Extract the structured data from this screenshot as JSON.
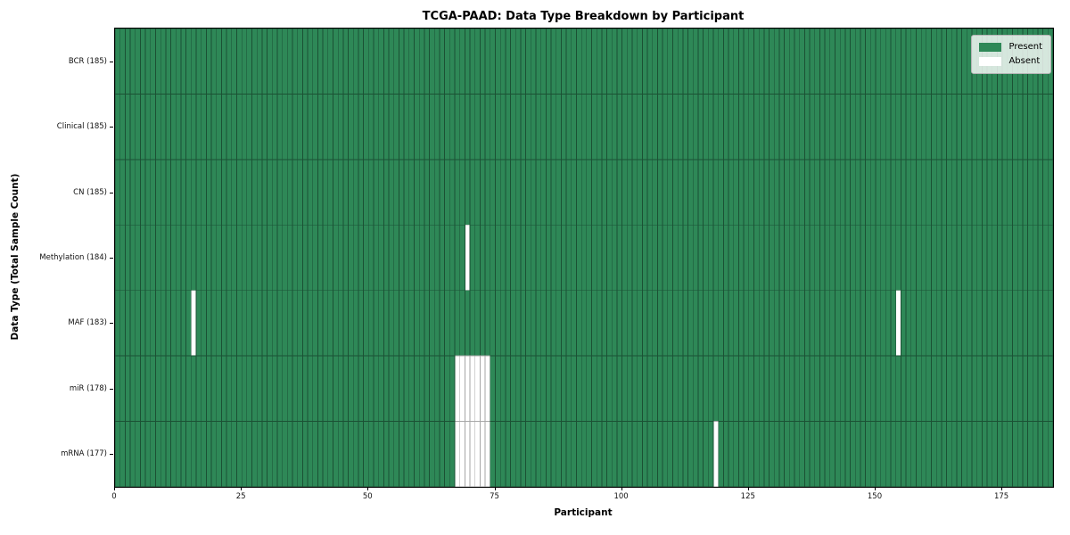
{
  "chart_data": {
    "type": "heatmap",
    "title": "TCGA-PAAD: Data Type Breakdown by Participant",
    "xlabel": "Participant",
    "ylabel": "Data Type (Total Sample Count)",
    "n_participants": 185,
    "x_range": [
      0,
      185
    ],
    "x_ticks": [
      0,
      25,
      50,
      75,
      100,
      125,
      150,
      175
    ],
    "grid": false,
    "legend_position": "upper right",
    "legend": [
      {
        "label": "Present",
        "value": "present"
      },
      {
        "label": "Absent",
        "value": "absent"
      }
    ],
    "rows": [
      {
        "label": "BCR (185)",
        "data_type": "BCR",
        "total": 185,
        "absent_participants": []
      },
      {
        "label": "Clinical (185)",
        "data_type": "Clinical",
        "total": 185,
        "absent_participants": []
      },
      {
        "label": "CN (185)",
        "data_type": "CN",
        "total": 185,
        "absent_participants": []
      },
      {
        "label": "Methylation (184)",
        "data_type": "Methylation",
        "total": 184,
        "absent_participants": [
          69
        ]
      },
      {
        "label": "MAF (183)",
        "data_type": "MAF",
        "total": 183,
        "absent_participants": [
          15,
          154
        ]
      },
      {
        "label": "miR (178)",
        "data_type": "miR",
        "total": 178,
        "absent_participants": [
          67,
          68,
          69,
          70,
          71,
          72,
          73
        ]
      },
      {
        "label": "mRNA (177)",
        "data_type": "mRNA",
        "total": 177,
        "absent_participants": [
          67,
          68,
          69,
          70,
          71,
          72,
          73,
          118
        ]
      }
    ],
    "colors": {
      "present": "#2e8857",
      "absent": "#ffffff",
      "present_border": "#1b5134",
      "absent_border": "#a6a6a6",
      "spine": "#000000"
    }
  }
}
